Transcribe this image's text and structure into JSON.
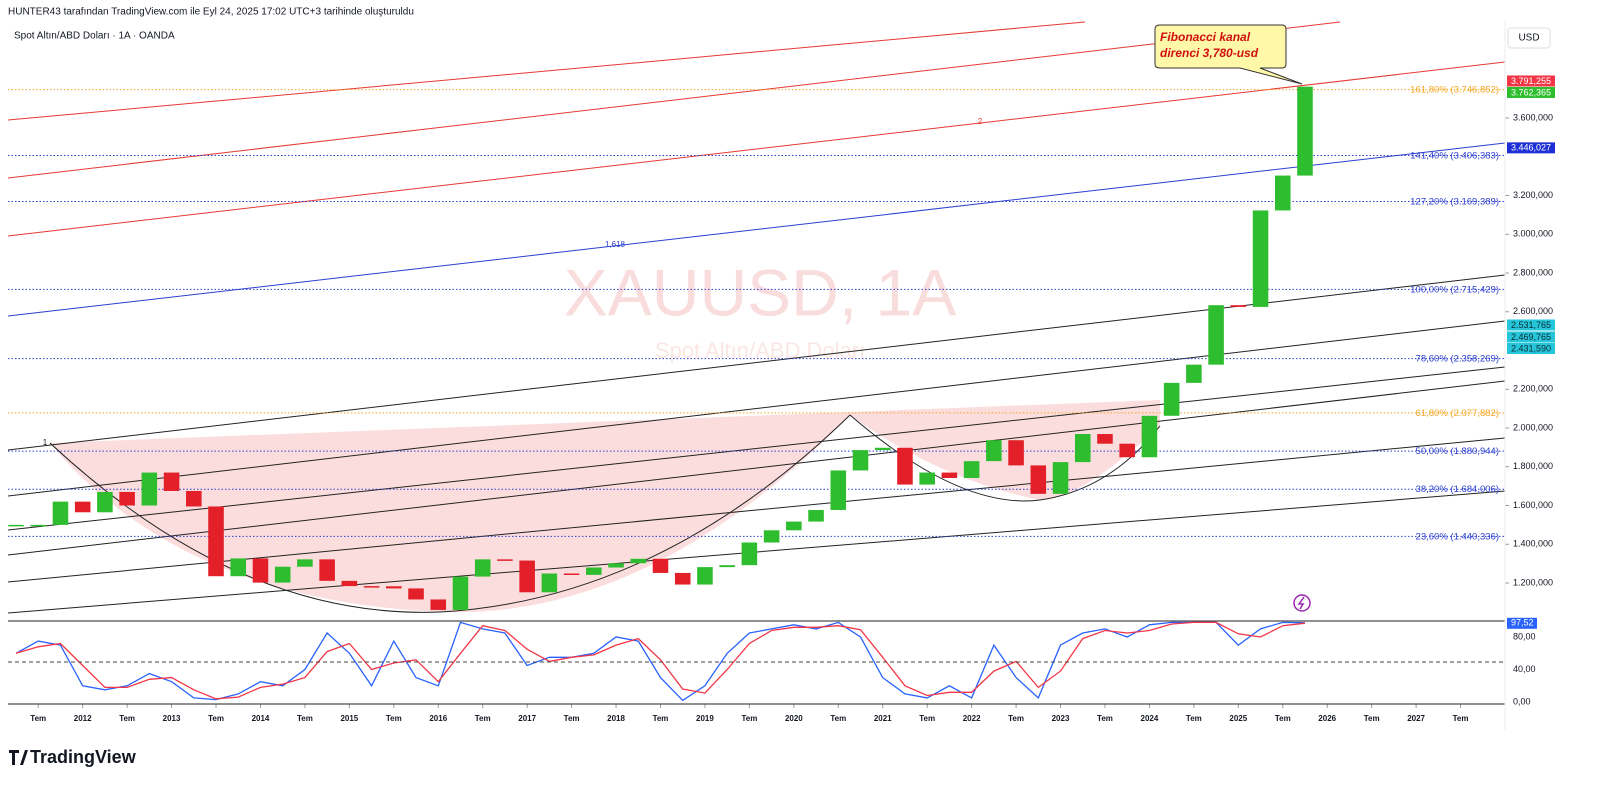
{
  "header": "HUNTER43 tarafından TradingView.com ile Eyl 24, 2025 17:02 UTC+3 tarihinde oluşturuldu",
  "symbol": "Spot Altın/ABD Doları · 1A · OANDA",
  "currency": "USD",
  "watermark": {
    "ticker": "XAUUSD, 1A",
    "name": "Spot Altın/ABD Doları"
  },
  "callout": [
    "Fibonacci kanal",
    "direnci 3,780-usd"
  ],
  "drawing_labels": {
    "red": "2",
    "blue": "1,618",
    "start": "1"
  },
  "logo": "TradingView",
  "chart_data": {
    "type": "candlestick",
    "x": [
      2011.25,
      2011.5,
      2011.75,
      2012,
      2012.25,
      2012.5,
      2012.75,
      2013,
      2013.25,
      2013.5,
      2013.75,
      2014,
      2014.25,
      2014.5,
      2014.75,
      2015,
      2015.25,
      2015.5,
      2015.75,
      2016,
      2016.25,
      2016.5,
      2016.75,
      2017,
      2017.25,
      2017.5,
      2017.75,
      2018,
      2018.25,
      2018.5,
      2018.75,
      2019,
      2019.25,
      2019.5,
      2019.75,
      2020,
      2020.25,
      2020.5,
      2020.75,
      2021,
      2021.25,
      2021.5,
      2021.75,
      2022,
      2022.25,
      2022.5,
      2022.75,
      2023,
      2023.25,
      2023.5,
      2023.75,
      2024,
      2024.25,
      2024.5,
      2024.75,
      2025,
      2025.25,
      2025.5,
      2025.75
    ],
    "values": [
      1500,
      1500,
      1620,
      1565,
      1670,
      1600,
      1770,
      1675,
      1595,
      1235,
      1327,
      1202,
      1284,
      1322,
      1211,
      1184,
      1183,
      1172,
      1115,
      1061,
      1233,
      1322,
      1316,
      1152,
      1249,
      1242,
      1280,
      1302,
      1325,
      1252,
      1192,
      1282,
      1292,
      1409,
      1472,
      1517,
      1577,
      1781,
      1886,
      1898,
      1708,
      1770,
      1742,
      1829,
      1937,
      1807,
      1660,
      1824,
      1969,
      1919,
      1849,
      2063,
      2233,
      2327,
      2634,
      2625,
      3123,
      3303,
      3762
    ],
    "up_color": "#2ebd2e",
    "down_color": "#e3202a",
    "xlim": [
      2011.16,
      2028.0
    ],
    "xticks": [
      {
        "value": 2011.5,
        "label": "Tem"
      },
      2012,
      {
        "value": 2012.5,
        "label": "Tem"
      },
      2013,
      {
        "value": 2013.5,
        "label": "Tem"
      },
      2014,
      {
        "value": 2014.5,
        "label": "Tem"
      },
      2015,
      {
        "value": 2015.5,
        "label": "Tem"
      },
      2016,
      {
        "value": 2016.5,
        "label": "Tem"
      },
      2017,
      {
        "value": 2017.5,
        "label": "Tem"
      },
      2018,
      {
        "value": 2018.5,
        "label": "Tem"
      },
      2019,
      {
        "value": 2019.5,
        "label": "Tem"
      },
      2020,
      {
        "value": 2020.5,
        "label": "Tem"
      },
      2021,
      {
        "value": 2021.5,
        "label": "Tem"
      },
      2022,
      {
        "value": 2022.5,
        "label": "Tem"
      },
      2023,
      {
        "value": 2023.5,
        "label": "Tem"
      },
      2024,
      {
        "value": 2024.5,
        "label": "Tem"
      },
      2025,
      {
        "value": 2025.5,
        "label": "Tem"
      },
      2026,
      {
        "value": 2026.5,
        "label": "Tem"
      },
      2027,
      {
        "value": 2027.5,
        "label": "Tem"
      }
    ],
    "ylim": [
      1009,
      4106
    ],
    "yticks": [
      {
        "value": 1200,
        "label": "1.200,000"
      },
      {
        "value": 1400,
        "label": "1.400,000"
      },
      {
        "value": 1600,
        "label": "1.600,000"
      },
      {
        "value": 1800,
        "label": "1.800,000"
      },
      {
        "value": 2000,
        "label": "2.000,000"
      },
      {
        "value": 2200,
        "label": "2.200,000"
      },
      {
        "value": 2600,
        "label": "2.600,000"
      },
      {
        "value": 2800,
        "label": "2.800,000"
      },
      {
        "value": 3000,
        "label": "3.000,000"
      },
      {
        "value": 3200,
        "label": "3.200,000"
      },
      {
        "value": 3600,
        "label": "3.600,000"
      }
    ],
    "price_tags": [
      {
        "value": 3791.255,
        "label": "3.791,255",
        "color": "#f23645"
      },
      {
        "value": 3762.365,
        "label": "3.762,365",
        "color": "#2ebd2e"
      },
      {
        "value": 3446.027,
        "label": "3.446,027",
        "color": "#1e2fd6"
      },
      {
        "value": 2531.765,
        "label": "2.531,765",
        "color": "#26c6da"
      },
      {
        "value": 2469.765,
        "label": "2.469,765",
        "color": "#26c6da"
      },
      {
        "value": 2431.59,
        "label": "2.431,590",
        "color": "#26c6da"
      }
    ],
    "fib_levels": [
      {
        "value": 3746.852,
        "label": "161,80% (3.746,852)",
        "color": "#f5a623"
      },
      {
        "value": 3406.383,
        "label": "141,40% (3.406,383)",
        "color": "#2b3fd1"
      },
      {
        "value": 3169.389,
        "label": "127,20% (3.169,389)",
        "color": "#2b3fd1"
      },
      {
        "value": 2715.429,
        "label": "100,00% (2.715,429)",
        "color": "#2b3fd1"
      },
      {
        "value": 2358.269,
        "label": "78,60% (2.358,269)",
        "color": "#2b3fd1"
      },
      {
        "value": 2077.882,
        "label": "61,80% (2.077,882)",
        "color": "#f5a623"
      },
      {
        "value": 1880.944,
        "label": "50,00% (1.880,944)",
        "color": "#2b3fd1"
      },
      {
        "value": 1684.006,
        "label": "38,20% (1.684,006)",
        "color": "#2b3fd1"
      },
      {
        "value": 1440.336,
        "label": "23,60% (1.440,336)",
        "color": "#2b3fd1"
      }
    ],
    "oscillator": {
      "ylim": [
        0,
        98.5
      ],
      "yticks": [
        {
          "value": 80,
          "label": "80,00"
        },
        {
          "value": 40,
          "label": "40,00"
        },
        {
          "value": 0,
          "label": "0,00"
        }
      ],
      "tag": {
        "value": 97.52,
        "label": "97,52"
      },
      "series": [
        {
          "color": "#2962ff",
          "values": [
            60,
            75,
            70,
            20,
            15,
            20,
            35,
            25,
            5,
            3,
            10,
            25,
            20,
            40,
            85,
            60,
            20,
            75,
            30,
            20,
            98,
            90,
            85,
            45,
            55,
            55,
            60,
            80,
            75,
            30,
            2,
            20,
            60,
            85,
            90,
            95,
            90,
            98,
            80,
            30,
            10,
            5,
            20,
            5,
            70,
            30,
            5,
            70,
            85,
            90,
            80,
            95,
            98,
            98,
            98,
            70,
            90,
            98,
            97.52
          ]
        },
        {
          "color": "#f23645",
          "values": [
            60,
            68,
            72,
            45,
            18,
            18,
            28,
            30,
            15,
            4,
            6,
            18,
            22,
            30,
            62,
            72,
            40,
            48,
            52,
            25,
            60,
            94,
            88,
            65,
            50,
            55,
            58,
            70,
            78,
            52,
            16,
            11,
            40,
            72,
            88,
            92,
            92,
            94,
            89,
            55,
            20,
            8,
            12,
            12,
            38,
            50,
            18,
            38,
            78,
            88,
            85,
            88,
            96,
            98,
            98,
            84,
            80,
            94,
            97
          ]
        }
      ]
    }
  }
}
